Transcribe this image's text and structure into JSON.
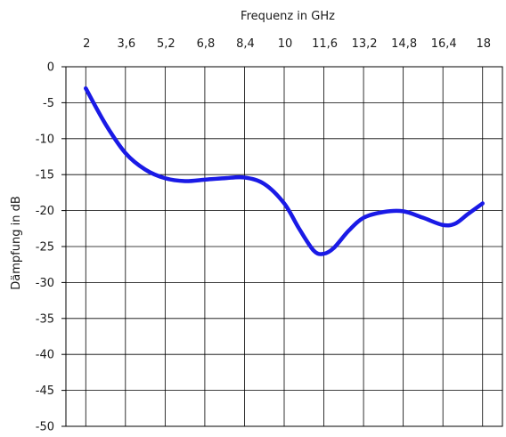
{
  "chart_data": {
    "type": "line",
    "title": "",
    "xlabel": "Frequenz in GHz",
    "ylabel": "Dämpfung in dB",
    "x_axis_position": "top",
    "x_ticks": [
      "2",
      "3,6",
      "5,2",
      "6,8",
      "8,4",
      "10",
      "11,6",
      "13,2",
      "14,8",
      "16,4",
      "18"
    ],
    "y_ticks": [
      "0",
      "-5",
      "-10",
      "-15",
      "-20",
      "-25",
      "-30",
      "-35",
      "-40",
      "-45",
      "-50"
    ],
    "xlim": [
      1.2,
      18.8
    ],
    "ylim": [
      -50,
      0
    ],
    "grid": true,
    "series": [
      {
        "color": "#1a1ae6",
        "x": [
          2,
          2.8,
          3.6,
          4.4,
          5.2,
          6.0,
          6.8,
          7.6,
          8.4,
          9.2,
          10,
          10.6,
          11.2,
          11.6,
          12.0,
          12.6,
          13.2,
          14.0,
          14.8,
          15.6,
          16.4,
          16.9,
          17.4,
          18
        ],
        "y": [
          -3,
          -8,
          -12,
          -14.3,
          -15.5,
          -15.9,
          -15.7,
          -15.5,
          -15.4,
          -16.3,
          -19,
          -22.5,
          -25.6,
          -26,
          -25.2,
          -22.8,
          -21,
          -20.2,
          -20.1,
          -21,
          -22,
          -21.8,
          -20.5,
          -19
        ]
      }
    ]
  }
}
